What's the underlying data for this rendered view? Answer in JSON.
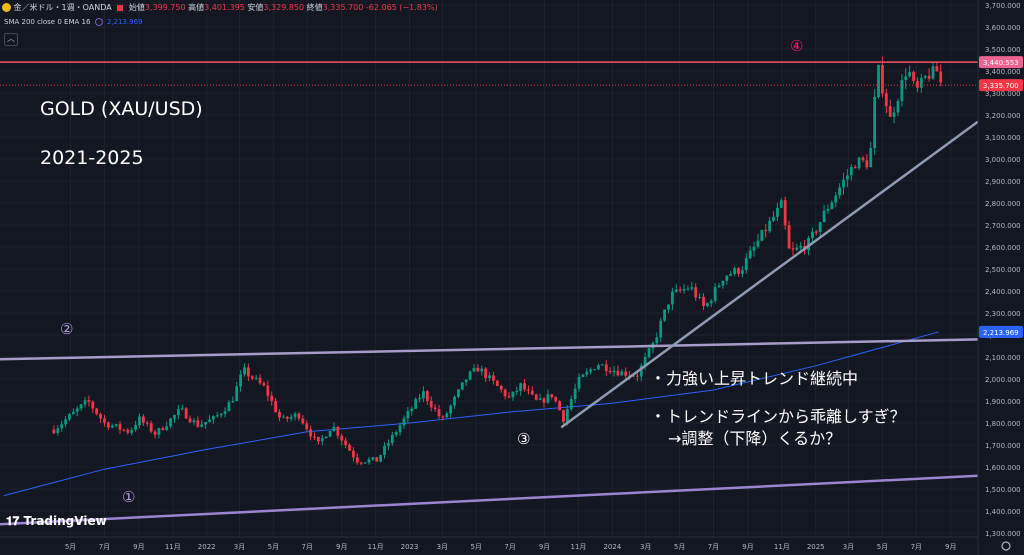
{
  "header": {
    "symbol": "金／米ドル・1週・OANDA",
    "open_label": "始値",
    "open_value": "3,399.750",
    "high_label": "高値",
    "high_value": "3,401.395",
    "low_label": "安値",
    "low_value": "3,329.850",
    "close_label": "終値",
    "close_value": "3,335.700",
    "change": "-62.065 (−1.83%)",
    "indicator": "SMA 200 close 0 EMA 16",
    "indicator_value": "2,213.969",
    "collapse_icon": "chevron-up-icon"
  },
  "title": "GOLD (XAU/USD)",
  "subtitle": "2021-2025",
  "annotations": {
    "line1": "・力強い上昇トレンド継続中",
    "line2": "・トレンドラインから乖離しすぎ？",
    "line3": "→調整（下降）くるか？",
    "m1": "①",
    "m2": "②",
    "m3": "③",
    "m4": "④"
  },
  "watermark": "TradingView",
  "settings_icon": "gear-icon",
  "colors": {
    "up": "#089981",
    "down": "#f23645",
    "bg": "#131722",
    "resistance": "#f7525f",
    "sma": "#2962ff",
    "trend": "#8f9bb3",
    "channel": "#9c84d4",
    "price_tag": "#f23645",
    "res_tag": "#f06292",
    "sma_tag": "#2962ff"
  },
  "chart_data": {
    "type": "candlestick",
    "interval": "1W",
    "ylim": [
      1300,
      3700
    ],
    "y_ticks": [
      1300,
      1400,
      1500,
      1600,
      1700,
      1800,
      1900,
      2000,
      2100,
      2200,
      2300,
      2400,
      2500,
      2600,
      2700,
      2800,
      2900,
      3000,
      3100,
      3200,
      3300,
      3400,
      3500,
      3600,
      3700
    ],
    "y_tick_labels": [
      "1,300.000",
      "1,400.000",
      "1,500.000",
      "1,600.000",
      "1,700.000",
      "1,800.000",
      "1,900.000",
      "2,000.000",
      "2,100.000",
      "2,200.000",
      "2,300.000",
      "2,400.000",
      "2,500.000",
      "2,600.000",
      "2,700.000",
      "2,800.000",
      "2,900.000",
      "3,000.000",
      "3,100.000",
      "3,200.000",
      "3,300.000",
      "3,400.000",
      "3,500.000",
      "3,600.000",
      "3,700.000"
    ],
    "x_tick_labels": [
      "5月",
      "7月",
      "9月",
      "11月",
      "2022",
      "3月",
      "5月",
      "7月",
      "9月",
      "11月",
      "2023",
      "3月",
      "5月",
      "7月",
      "9月",
      "11月",
      "2024",
      "3月",
      "5月",
      "7月",
      "9月",
      "11月",
      "2025",
      "3月",
      "5月",
      "7月",
      "9月"
    ],
    "x_tick_dates": [
      "2021-05-01",
      "2021-07-01",
      "2021-09-01",
      "2021-11-01",
      "2022-01-01",
      "2022-03-01",
      "2022-05-01",
      "2022-07-01",
      "2022-09-01",
      "2022-11-01",
      "2023-01-01",
      "2023-03-01",
      "2023-05-01",
      "2023-07-01",
      "2023-09-01",
      "2023-11-01",
      "2024-01-01",
      "2024-03-01",
      "2024-05-01",
      "2024-07-01",
      "2024-09-01",
      "2024-11-01",
      "2025-01-01",
      "2025-03-01",
      "2025-05-01",
      "2025-07-01",
      "2025-09-01"
    ],
    "price_tags": [
      {
        "value": 3440.553,
        "label": "3,440.553"
      },
      {
        "value": 3335.7,
        "label": "3,335.700"
      },
      {
        "value": 2213.969,
        "label": "2,213.969"
      }
    ],
    "resistance": 3440.553,
    "anchors": [
      [
        "2021-04-01",
        1770
      ],
      [
        "2021-06-01",
        1900
      ],
      [
        "2021-07-01",
        1800
      ],
      [
        "2021-08-15",
        1760
      ],
      [
        "2021-09-01",
        1820
      ],
      [
        "2021-10-01",
        1750
      ],
      [
        "2021-11-15",
        1860
      ],
      [
        "2021-12-15",
        1790
      ],
      [
        "2022-01-15",
        1820
      ],
      [
        "2022-02-15",
        1900
      ],
      [
        "2022-03-08",
        2040
      ],
      [
        "2022-04-15",
        1960
      ],
      [
        "2022-05-15",
        1810
      ],
      [
        "2022-06-15",
        1840
      ],
      [
        "2022-07-20",
        1700
      ],
      [
        "2022-08-15",
        1790
      ],
      [
        "2022-09-28",
        1630
      ],
      [
        "2022-11-03",
        1630
      ],
      [
        "2022-12-15",
        1790
      ],
      [
        "2023-01-25",
        1940
      ],
      [
        "2023-03-01",
        1810
      ],
      [
        "2023-04-15",
        2010
      ],
      [
        "2023-05-05",
        2050
      ],
      [
        "2023-06-30",
        1910
      ],
      [
        "2023-07-20",
        1970
      ],
      [
        "2023-08-20",
        1890
      ],
      [
        "2023-09-15",
        1930
      ],
      [
        "2023-10-05",
        1820
      ],
      [
        "2023-11-01",
        1990
      ],
      [
        "2023-12-05",
        2070
      ],
      [
        "2024-01-15",
        2030
      ],
      [
        "2024-02-15",
        2020
      ],
      [
        "2024-03-15",
        2160
      ],
      [
        "2024-04-15",
        2380
      ],
      [
        "2024-05-20",
        2420
      ],
      [
        "2024-06-15",
        2320
      ],
      [
        "2024-07-20",
        2470
      ],
      [
        "2024-08-20",
        2500
      ],
      [
        "2024-09-25",
        2650
      ],
      [
        "2024-10-31",
        2790
      ],
      [
        "2024-11-15",
        2570
      ],
      [
        "2024-12-20",
        2620
      ],
      [
        "2025-01-20",
        2770
      ],
      [
        "2025-02-20",
        2900
      ],
      [
        "2025-03-15",
        2990
      ],
      [
        "2025-04-08",
        2980
      ],
      [
        "2025-04-22",
        3420
      ],
      [
        "2025-05-15",
        3180
      ],
      [
        "2025-06-15",
        3420
      ],
      [
        "2025-06-30",
        3300
      ],
      [
        "2025-07-20",
        3380
      ],
      [
        "2025-08-08",
        3400
      ],
      [
        "2025-08-15",
        3336
      ]
    ],
    "sma": [
      [
        "2021-01-01",
        1470
      ],
      [
        "2021-07-01",
        1590
      ],
      [
        "2022-01-01",
        1680
      ],
      [
        "2022-07-01",
        1760
      ],
      [
        "2023-01-01",
        1800
      ],
      [
        "2023-07-01",
        1850
      ],
      [
        "2024-01-01",
        1890
      ],
      [
        "2024-07-01",
        1950
      ],
      [
        "2025-01-01",
        2060
      ],
      [
        "2025-08-10",
        2214
      ]
    ],
    "lines": [
      {
        "name": "① lower channel",
        "from": [
          "2020-12-25",
          1340
        ],
        "to": [
          "2025-10-20",
          1560
        ]
      },
      {
        "name": "② upper channel",
        "from": [
          "2020-12-25",
          2090
        ],
        "to": [
          "2025-10-20",
          2180
        ]
      },
      {
        "name": "③ trendline",
        "from": [
          "2023-10-01",
          1780
        ],
        "to": [
          "2025-10-20",
          3170
        ]
      },
      {
        "name": "④ resistance",
        "from": [
          "2020-12-25",
          3440.553
        ],
        "to": [
          "2025-10-20",
          3440.553
        ]
      }
    ]
  }
}
